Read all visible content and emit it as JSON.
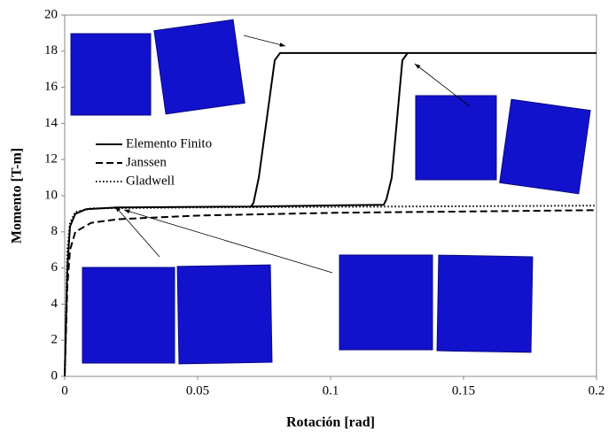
{
  "chart_data": {
    "type": "line",
    "xlabel": "Rotación [rad]",
    "ylabel": "Momento [T-m]",
    "xlim": [
      0,
      0.2
    ],
    "xticks": [
      0,
      0.05,
      0.1,
      0.15,
      0.2
    ],
    "ylim": [
      0,
      20
    ],
    "yticks": [
      0,
      2,
      4,
      6,
      8,
      10,
      12,
      14,
      16,
      18,
      20
    ],
    "grid": false,
    "series": [
      {
        "name": "Elemento Finito",
        "color": "#000000",
        "style": "solid",
        "x": [
          0,
          0.001,
          0.002,
          0.004,
          0.008,
          0.02,
          0.07,
          0.071,
          0.073,
          0.079,
          0.081,
          0.2,
          null,
          0.07,
          0.12,
          0.121,
          0.123,
          0.127,
          0.129
        ],
        "values": [
          0,
          6,
          8.3,
          9.0,
          9.25,
          9.35,
          9.4,
          9.6,
          11,
          17.5,
          17.9,
          17.9,
          null,
          9.4,
          9.5,
          9.8,
          11,
          17.5,
          17.9
        ]
      },
      {
        "name": "Janssen",
        "color": "#000000",
        "style": "dashed",
        "x": [
          0,
          0.001,
          0.002,
          0.004,
          0.01,
          0.02,
          0.05,
          0.1,
          0.2
        ],
        "values": [
          0,
          5,
          7,
          8,
          8.5,
          8.7,
          8.9,
          9.05,
          9.2
        ]
      },
      {
        "name": "Gladwell",
        "color": "#000000",
        "style": "dotted",
        "x": [
          0,
          0.001,
          0.002,
          0.004,
          0.01,
          0.05,
          0.2
        ],
        "values": [
          0,
          7,
          8.5,
          9.1,
          9.3,
          9.35,
          9.45
        ]
      }
    ]
  }
}
